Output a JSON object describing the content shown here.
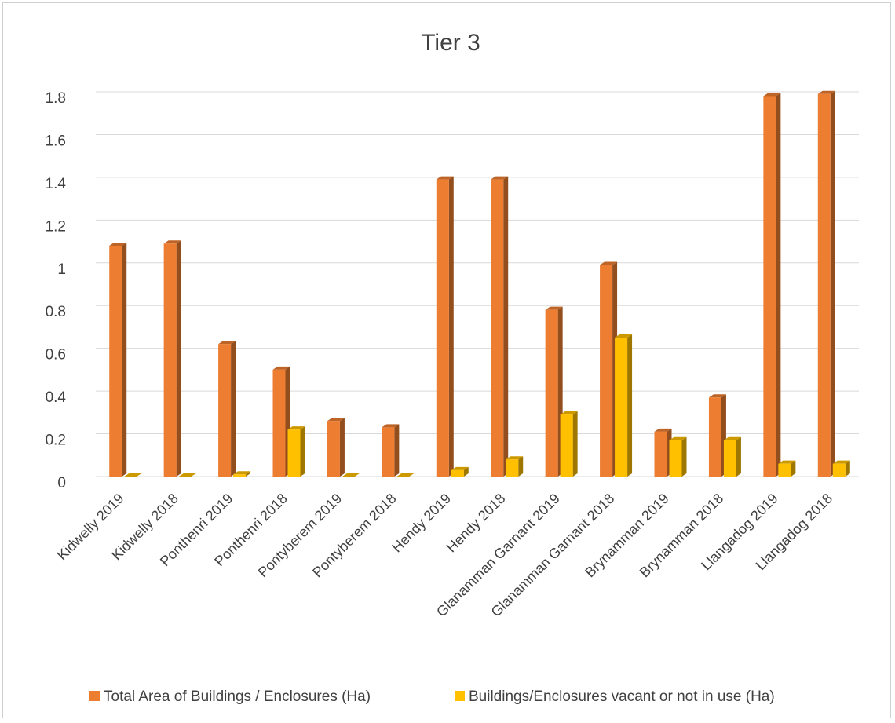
{
  "chart_data": {
    "type": "bar",
    "title": "Tier 3",
    "xlabel": "",
    "ylabel": "",
    "ylim": [
      0,
      1.8
    ],
    "yticks": [
      "0",
      "0.2",
      "0.4",
      "0.6",
      "0.8",
      "1",
      "1.2",
      "1.4",
      "1.6",
      "1.8"
    ],
    "grid": true,
    "legend_position": "bottom",
    "categories": [
      "Kidwelly 2019",
      "Kidwelly 2018",
      "Ponthenri 2019",
      "Ponthenri 2018",
      "Pontyberem 2019",
      "Pontyberem 2018",
      "Hendy 2019",
      "Hendy 2018",
      "Glanamman  Garnant 2019",
      "Glanamman  Garnant 2018",
      "Brynamman 2019",
      "Brynamman 2018",
      "Llangadog 2019",
      "Llangadog 2018"
    ],
    "series": [
      {
        "name": "Total Area of Buildings / Enclosures (Ha)",
        "color": "#ED7D31",
        "values": [
          1.08,
          1.09,
          0.62,
          0.5,
          0.26,
          0.23,
          1.39,
          1.39,
          0.78,
          0.99,
          0.21,
          0.37,
          1.78,
          1.79
        ]
      },
      {
        "name": "Buildings/Enclosures vacant or not in use (Ha)",
        "color": "#FFC000",
        "values": [
          0,
          0,
          0.01,
          0.22,
          0,
          0,
          0.03,
          0.08,
          0.29,
          0.65,
          0.17,
          0.17,
          0.06,
          0.06
        ]
      }
    ]
  }
}
